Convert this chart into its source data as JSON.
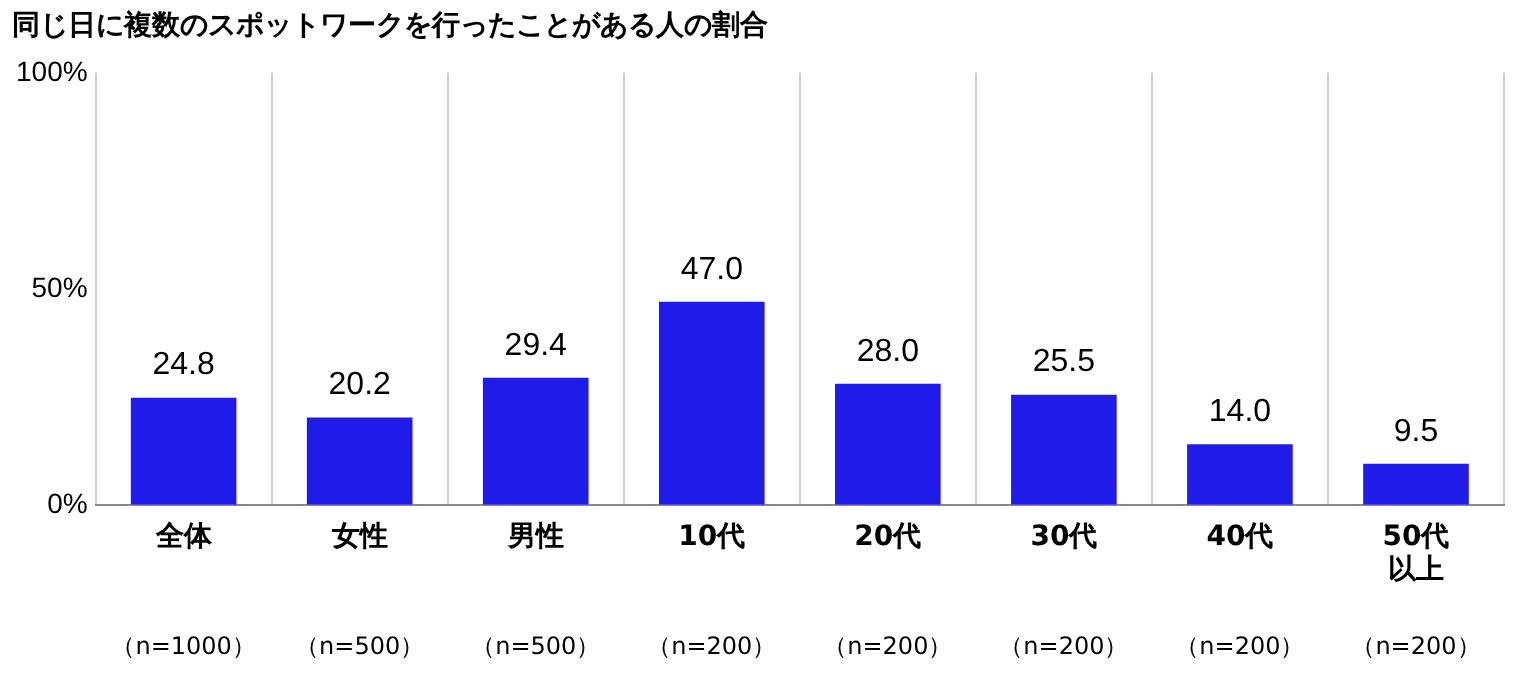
{
  "chart_data": {
    "type": "bar",
    "title": "同じ日に複数のスポットワークを行ったことがある人の割合",
    "categories": [
      "全体",
      "女性",
      "男性",
      "10代",
      "20代",
      "30代",
      "40代",
      "50代以上"
    ],
    "values": [
      24.8,
      20.2,
      29.4,
      47.0,
      28.0,
      25.5,
      14.0,
      9.5
    ],
    "color": "#1f1be8",
    "ylim": [
      0,
      100
    ],
    "yticks": [
      {
        "value": 0,
        "label": "0%"
      },
      {
        "value": 50,
        "label": "50%"
      },
      {
        "value": 100,
        "label": "100%"
      }
    ],
    "value_labels": [
      "24.8",
      "20.2",
      "29.4",
      "47.0",
      "28.0",
      "25.5",
      "14.0",
      "9.5"
    ],
    "grid": "x",
    "legend": false,
    "annotations": [
      "（n=1000）",
      "（n=500）",
      "（n=500）",
      "（n=200）",
      "（n=200）",
      "（n=200）",
      "（n=200）",
      "（n=200）"
    ]
  }
}
